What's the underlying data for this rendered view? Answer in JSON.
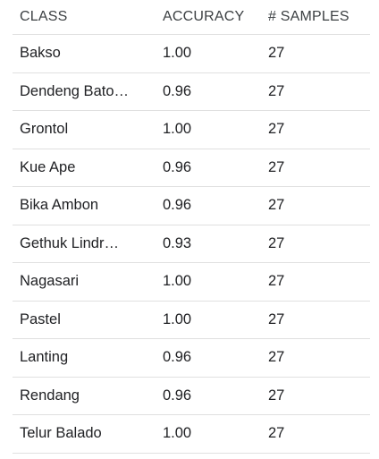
{
  "table": {
    "headers": [
      "CLASS",
      "ACCURACY",
      "# SAMPLES"
    ],
    "rows": [
      [
        "Bakso",
        "1.00",
        "27"
      ],
      [
        "Dendeng Bato…",
        "0.96",
        "27"
      ],
      [
        "Grontol",
        "1.00",
        "27"
      ],
      [
        "Kue Ape",
        "0.96",
        "27"
      ],
      [
        "Bika Ambon",
        "0.96",
        "27"
      ],
      [
        "Gethuk Lindr…",
        "0.93",
        "27"
      ],
      [
        "Nagasari",
        "1.00",
        "27"
      ],
      [
        "Pastel",
        "1.00",
        "27"
      ],
      [
        "Lanting",
        "0.96",
        "27"
      ],
      [
        "Rendang",
        "0.96",
        "27"
      ],
      [
        "Telur Balado",
        "1.00",
        "27"
      ]
    ]
  }
}
